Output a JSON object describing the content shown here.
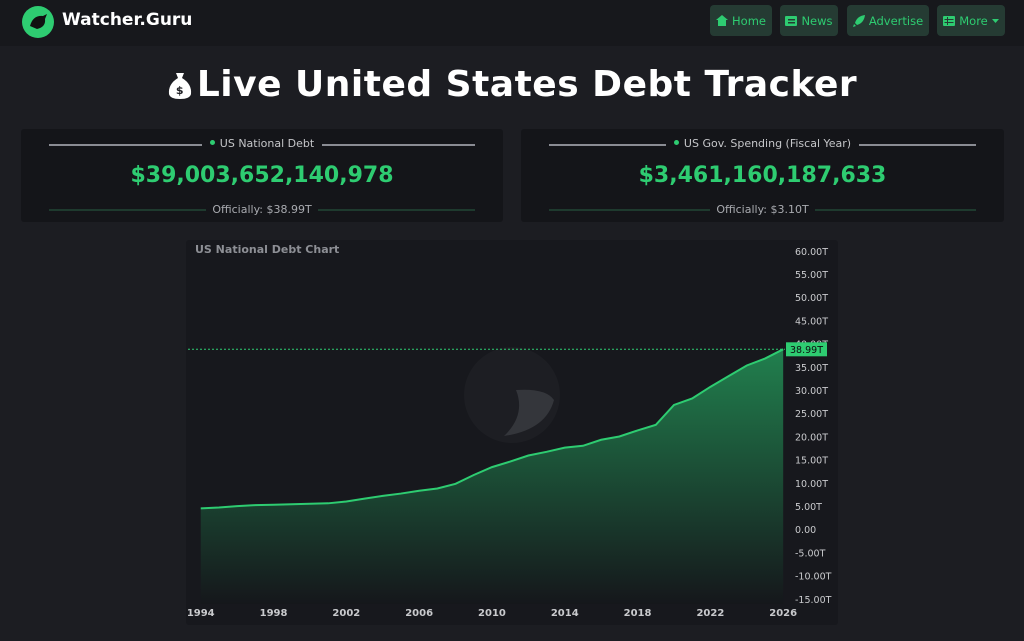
{
  "header": {
    "brand": "Watcher.Guru",
    "nav": [
      "Home",
      "News",
      "Advertise",
      "More"
    ]
  },
  "title": "Live United States Debt Tracker",
  "cards": [
    {
      "label": "US National Debt",
      "value": "$39,003,652,140,978",
      "official": "Officially: $38.99T"
    },
    {
      "label": "US Gov. Spending (Fiscal Year)",
      "value": "$3,461,160,187,633",
      "official": "Officially: $3.10T"
    }
  ],
  "chart_data": {
    "type": "area",
    "title": "US National Debt Chart",
    "x": [
      1994,
      1995,
      1996,
      1997,
      1998,
      1999,
      2000,
      2001,
      2002,
      2003,
      2004,
      2005,
      2006,
      2007,
      2008,
      2009,
      2010,
      2011,
      2012,
      2013,
      2014,
      2015,
      2016,
      2017,
      2018,
      2019,
      2020,
      2021,
      2022,
      2023,
      2024,
      2025,
      2026
    ],
    "series": [
      {
        "color": "#2ecc71",
        "values": [
          4.7,
          4.9,
          5.2,
          5.4,
          5.5,
          5.6,
          5.7,
          5.8,
          6.2,
          6.8,
          7.4,
          7.9,
          8.5,
          9.0,
          10.0,
          11.9,
          13.6,
          14.8,
          16.1,
          16.9,
          17.8,
          18.2,
          19.5,
          20.2,
          21.5,
          22.7,
          27.0,
          28.4,
          30.9,
          33.2,
          35.5,
          37.0,
          38.99
        ]
      }
    ],
    "current": {
      "value": 38.99,
      "label": "38.99T"
    },
    "xlim": [
      1993.3,
      2026.1
    ],
    "xticks": [
      1994,
      1998,
      2002,
      2006,
      2010,
      2014,
      2018,
      2022,
      2026
    ],
    "ylim": [
      -15.9,
      61.9
    ],
    "yticks": [
      {
        "value": 60,
        "label": "60.00T"
      },
      {
        "value": 55,
        "label": "55.00T"
      },
      {
        "value": 50,
        "label": "50.00T"
      },
      {
        "value": 45,
        "label": "45.00T"
      },
      {
        "value": 40,
        "label": "40.00T"
      },
      {
        "value": 35,
        "label": "35.00T"
      },
      {
        "value": 30,
        "label": "30.00T"
      },
      {
        "value": 25,
        "label": "25.00T"
      },
      {
        "value": 20,
        "label": "20.00T"
      },
      {
        "value": 15,
        "label": "15.00T"
      },
      {
        "value": 10,
        "label": "10.00T"
      },
      {
        "value": 5,
        "label": "5.00T"
      },
      {
        "value": 0,
        "label": "0.00"
      },
      {
        "value": -5,
        "label": "-5.00T"
      },
      {
        "value": -10,
        "label": "-10.00T"
      },
      {
        "value": -15,
        "label": "-15.00T"
      }
    ],
    "grid": false
  }
}
